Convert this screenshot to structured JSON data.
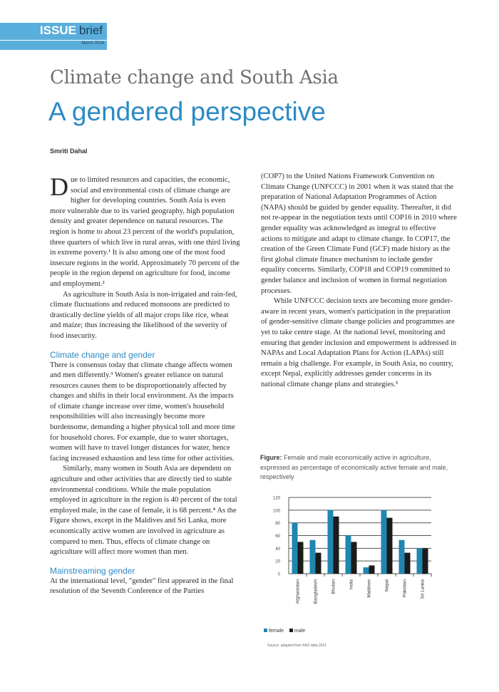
{
  "header": {
    "issue": "ISSUE",
    "brief": "brief",
    "date": "March 2014"
  },
  "title": "Climate change and South Asia",
  "subtitle": "A gendered perspective",
  "author": "Smriti Dahal",
  "left": {
    "p1_drop": "D",
    "p1": "ue to limited resources and capacities, the economic, social and environmental costs of climate change are higher for developing countries. South Asia is even more vulnerable due to its varied geography, high population density and greater dependence on natural resources. The region is home to about 23 percent of the world's population, three quarters of which live in rural areas, with one third living in extreme poverty.¹ It is also among one of the most food insecure regions in the world. Approximately 70 percent of the people in the region depend on agriculture for food, income and employment.²",
    "p2": "As agriculture in South Asia is non-irrigated and rain-fed, climate fluctuations and reduced monsoons are predicted to drastically decline yields of all major crops like rice, wheat and maize; thus increasing the likelihood of the severity of food insecurity.",
    "h1": "Climate change and gender",
    "p3": "There is consensus today that climate change affects women and men differently.³ Women's greater reliance on natural resources causes them to be disproportionately affected by changes and shifts in their local environment. As the impacts of climate change increase over time, women's household responsibilities will also increasingly become more burdensome, demanding a higher physical toll and more time for household chores. For example, due to water shortages, women will have to travel longer distances for water, hence facing increased exhaustion and less time for other activities.",
    "p4": "Similarly, many women in South Asia are dependent on agriculture and other activities that are directly tied to stable environmental conditions. While the male population employed in agriculture in the region is 40 percent of the total employed male, in the case of female, it is 68 percent.⁴ As the Figure shows, except in the Maldives and Sri Lanka, more economically active women are involved in agriculture as compared to men. Thus, effects of climate change on agriculture will affect more women than men.",
    "h2": "Mainstreaming gender",
    "p5": "At the international level, \"gender\" first appeared in the final resolution of the Seventh Conference of the Parties"
  },
  "right": {
    "p1": "(COP7) to the United Nations Framework Convention on Climate Change (UNFCCC) in 2001 when it was stated that the preparation of National Adaptation Programmes of Action (NAPA) should be guided by gender equality. Thereafter, it did not re-appear in the negotiation texts until COP16 in 2010 where gender equality was acknowledged as integral to effective actions to mitigate and adapt to climate change. In COP17, the creation of the Green Climate Fund (GCF) made history as the first global climate finance mechanism to include gender equality concerns. Similarly, COP18 and COP19 committed to gender balance and inclusion of women in formal negotiation processes.",
    "p2": "While UNFCCC decision texts are becoming more gender-aware in recent years, women's participation in the preparation of gender-sensitive climate change policies and programmes are yet to take centre stage. At the national level, monitoring and ensuring that gender inclusion and empowerment is addressed in NAPAs and Local Adaptation Plans for Action (LAPAs) still remain a big challenge. For example, in South Asia, no country, except Nepal, explicitly addresses gender concerns in its national climate change plans and strategies.⁵"
  },
  "figure": {
    "label": "Figure:",
    "caption": "Female and male economically active in agriculture, expressed as percentage of economically active female and male, respectively",
    "source": "Source: adapted from FAO data 2011"
  },
  "chart_data": {
    "type": "bar",
    "title": "Female and male economically active in agriculture (%)",
    "categories": [
      "Afghanistan",
      "Bangladesh",
      "Bhutan",
      "India",
      "Maldives",
      "Nepal",
      "Pakistan",
      "Sri Lanka"
    ],
    "series": [
      {
        "name": "female",
        "color": "#1f87b0",
        "values": [
          80,
          53,
          100,
          60,
          10,
          100,
          53,
          40
        ]
      },
      {
        "name": "male",
        "color": "#1b1b1b",
        "values": [
          50,
          33,
          90,
          50,
          13,
          88,
          33,
          40
        ]
      }
    ],
    "yticks": [
      "0",
      "20",
      "40",
      "60",
      "80",
      "100",
      "120"
    ],
    "ylim": [
      0,
      120
    ],
    "grid": true,
    "legend": "bottom-left"
  }
}
